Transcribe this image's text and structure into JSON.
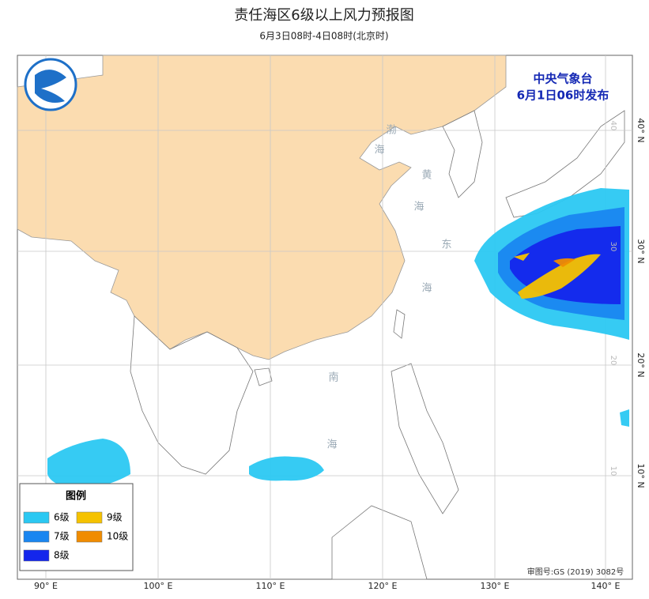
{
  "header": {
    "title": "责任海区6级以上风力预报图",
    "subtitle": "6月3日08时-4日08时(北京时)"
  },
  "issuer": {
    "agency": "中央气象台",
    "time": "6月1日06时发布"
  },
  "map": {
    "lon_labels": [
      "90° E",
      "100° E",
      "110° E",
      "120° E",
      "130° E",
      "140° E"
    ],
    "lat_labels": [
      "40° N",
      "30° N",
      "20° N",
      "10° N"
    ],
    "grid_labels": [
      "40",
      "30",
      "20",
      "10"
    ],
    "sea_labels": [
      "渤",
      "海",
      "黄",
      "海",
      "东",
      "海",
      "南",
      "海"
    ]
  },
  "legend": {
    "title": "图例",
    "items": [
      {
        "label": "6级",
        "color": "#2bc8f2"
      },
      {
        "label": "9级",
        "color": "#f5c200"
      },
      {
        "label": "7级",
        "color": "#1a86f0"
      },
      {
        "label": "10级",
        "color": "#f08c00"
      },
      {
        "label": "8级",
        "color": "#1426ec"
      }
    ]
  },
  "footer": {
    "approval": "审图号:GS (2019) 3082号"
  }
}
